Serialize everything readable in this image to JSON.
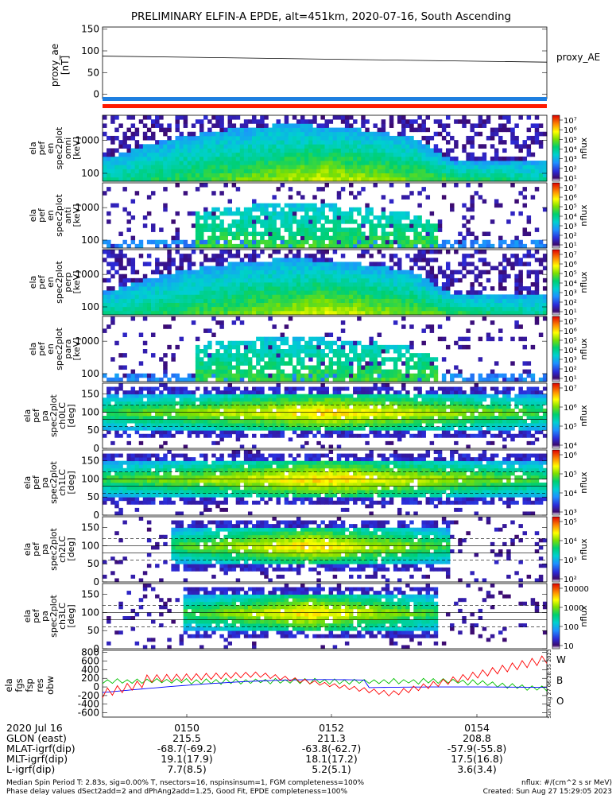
{
  "title": "PRELIMINARY ELFIN-A EPDE, alt=451km, 2020-07-16, South Ascending",
  "chart_data": [
    {
      "type": "line",
      "panel": "proxy_ae",
      "ylabel_lines": [
        "proxy_ae",
        "[nT]"
      ],
      "legend_label": "proxy_AE",
      "yticks": [
        "150",
        "100",
        "50",
        "0"
      ],
      "ylim": [
        -10,
        155
      ],
      "x": [
        0,
        1
      ],
      "y": [
        88,
        74
      ]
    },
    {
      "type": "heatmap",
      "panel": "ela_pef_en_spec2plot_omni",
      "ylabel_lines": [
        "ela",
        "pef",
        "en",
        "spec2plot",
        "omni",
        "[keV]"
      ],
      "yticks": [
        "1000",
        "100"
      ],
      "ylog": true,
      "colorbar_label": "nflux",
      "colorbar_ticks": [
        "10⁷",
        "10⁶",
        "10⁵",
        "10⁴",
        "10³",
        "10²",
        "10¹"
      ]
    },
    {
      "type": "heatmap",
      "panel": "ela_pef_en_spec2plot_anti",
      "ylabel_lines": [
        "ela",
        "pef",
        "en",
        "spec2plot",
        "anti",
        "[keV]"
      ],
      "yticks": [
        "1000",
        "100"
      ],
      "ylog": true,
      "colorbar_label": "nflux",
      "colorbar_ticks": [
        "10⁷",
        "10⁶",
        "10⁵",
        "10⁴",
        "10³",
        "10²",
        "10¹"
      ]
    },
    {
      "type": "heatmap",
      "panel": "ela_pef_en_spec2plot_perp",
      "ylabel_lines": [
        "ela",
        "pef",
        "en",
        "spec2plot",
        "perp",
        "[keV]"
      ],
      "yticks": [
        "1000",
        "100"
      ],
      "ylog": true,
      "colorbar_label": "nflux",
      "colorbar_ticks": [
        "10⁷",
        "10⁶",
        "10⁵",
        "10⁴",
        "10³",
        "10²",
        "10¹"
      ]
    },
    {
      "type": "heatmap",
      "panel": "ela_pef_en_spec2plot_para",
      "ylabel_lines": [
        "ela",
        "pef",
        "en",
        "spec2plot",
        "para",
        "[keV]"
      ],
      "yticks": [
        "1000",
        "100"
      ],
      "ylog": true,
      "colorbar_label": "nflux",
      "colorbar_ticks": [
        "10⁷",
        "10⁶",
        "10⁵",
        "10⁴",
        "10³",
        "10²",
        "10¹"
      ]
    },
    {
      "type": "heatmap",
      "panel": "ela_pef_pa_spec2plot_ch0LC",
      "ylabel_lines": [
        "ela",
        "pef",
        "pa",
        "spec2plot",
        "ch0LC",
        "[deg]"
      ],
      "yticks": [
        "150",
        "100",
        "50",
        "0"
      ],
      "ylim": [
        0,
        180
      ],
      "colorbar_label": "nflux",
      "colorbar_ticks": [
        "10⁷",
        "10⁶",
        "10⁵",
        "10⁴"
      ]
    },
    {
      "type": "heatmap",
      "panel": "ela_pef_pa_spec2plot_ch1LC",
      "ylabel_lines": [
        "ela",
        "pef",
        "pa",
        "spec2plot",
        "ch1LC",
        "[deg]"
      ],
      "yticks": [
        "150",
        "100",
        "50",
        "0"
      ],
      "ylim": [
        0,
        180
      ],
      "colorbar_label": "nflux",
      "colorbar_ticks": [
        "10⁶",
        "10⁵",
        "10⁴",
        "10³"
      ]
    },
    {
      "type": "heatmap",
      "panel": "ela_pef_pa_spec2plot_ch2LC",
      "ylabel_lines": [
        "ela",
        "pef",
        "pa",
        "spec2plot",
        "ch2LC",
        "[deg]"
      ],
      "yticks": [
        "150",
        "100",
        "50",
        "0"
      ],
      "ylim": [
        0,
        180
      ],
      "colorbar_label": "nflux",
      "colorbar_ticks": [
        "10⁵",
        "10⁴",
        "10³",
        "10²"
      ]
    },
    {
      "type": "heatmap",
      "panel": "ela_pef_pa_spec2plot_ch3LC",
      "ylabel_lines": [
        "ela",
        "pef",
        "pa",
        "spec2plot",
        "ch3LC",
        "[deg]"
      ],
      "yticks": [
        "150",
        "100",
        "50",
        "0"
      ],
      "ylim": [
        0,
        180
      ],
      "colorbar_label": "nflux",
      "colorbar_ticks": [
        "10000",
        "1000",
        "100",
        "10"
      ]
    },
    {
      "type": "line",
      "panel": "ela_fgs_fsp_res_obw",
      "ylabel_lines": [
        "ela",
        "fgs",
        "fsp",
        "res",
        "obw"
      ],
      "yticks": [
        "800",
        "600",
        "400",
        "200",
        "0",
        "-200",
        "-400",
        "-600"
      ],
      "ylim": [
        -700,
        850
      ],
      "series": [
        {
          "name": "W",
          "color": "#ff0000"
        },
        {
          "name": "B",
          "color": "#00c000"
        },
        {
          "name": "O",
          "color": "#0000ff"
        }
      ]
    }
  ],
  "side_stamp": "Sun Aug 27 06:28:55 2023",
  "footer": {
    "time_ticks": [
      "0150",
      "0152",
      "0154"
    ],
    "row_labels": [
      "2020 Jul 16",
      "GLON (east)",
      "MLAT-igrf(dip)",
      "MLT-igrf(dip)",
      "L-igrf(dip)"
    ],
    "glon": [
      "215.5",
      "211.3",
      "208.8"
    ],
    "mlat": [
      "-68.7(-69.2)",
      "-63.8(-62.7)",
      "-57.9(-55.8)"
    ],
    "mlt": [
      "19.1(17.9)",
      "18.1(17.2)",
      "17.5(16.8)"
    ],
    "lshell": [
      "7.7(8.5)",
      "5.2(5.1)",
      "3.6(3.4)"
    ],
    "note1": "Median Spin Period T: 2.83s, sig=0.00% T, nsectors=16, nspinsinsum=1, FGM completeness=100%",
    "note2": "Phase delay values dSect2add=2 and dPhAng2add=1.25, Good Fit, EPDE completeness=100%",
    "units": "nflux: #/(cm^2 s sr MeV)",
    "created": "Created: Sun Aug 27 15:29:05 2023"
  },
  "colors": {
    "bar_blue": "#1e7fe0",
    "bar_red": "#ff1a00",
    "bg": "#ffffff"
  }
}
